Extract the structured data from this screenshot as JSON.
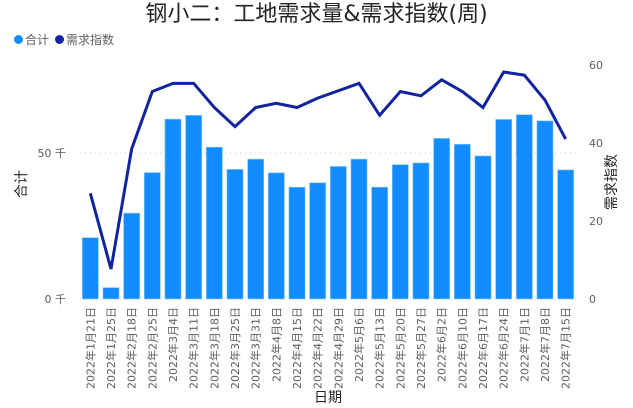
{
  "title": "钢小二：工地需求量&需求指数(周)",
  "legend": [
    {
      "label": "合计",
      "color": "#118DFF"
    },
    {
      "label": "需求指数",
      "color": "#12239E"
    }
  ],
  "axes": {
    "y_left_title": "合计",
    "y_right_title": "需求指数",
    "x_title": "日期",
    "y_left_ticks": [
      "0 千",
      "50 千"
    ],
    "y_right_ticks": [
      "0",
      "20",
      "40",
      "60"
    ]
  },
  "chart_data": {
    "type": "bar+line",
    "title": "钢小二：工地需求量&需求指数(周)",
    "xlabel": "日期",
    "ylabel": "合计",
    "y2label": "需求指数",
    "ylim": [
      0,
      100
    ],
    "y2lim": [
      0,
      60
    ],
    "grid": "dotted horizontal at 50千",
    "legend_position": "top-left",
    "categories": [
      "2022年1月21日",
      "2022年1月25日",
      "2022年2月18日",
      "2022年2月25日",
      "2022年3月4日",
      "2022年3月11日",
      "2022年3月18日",
      "2022年3月25日",
      "2022年3月31日",
      "2022年4月8日",
      "2022年4月15日",
      "2022年4月22日",
      "2022年4月29日",
      "2022年5月6日",
      "2022年5月13日",
      "2022年5月20日",
      "2022年5月27日",
      "2022年6月2日",
      "2022年6月10日",
      "2022年6月17日",
      "2022年6月24日",
      "2022年7月1日",
      "2022年7月8日",
      "2022年7月15日"
    ],
    "series": [
      {
        "name": "合计",
        "type": "bar",
        "axis": "left",
        "unit": "千",
        "color": "#118DFF",
        "values": [
          21.0,
          3.9,
          29.4,
          43.3,
          61.6,
          62.9,
          52.0,
          44.4,
          47.9,
          43.2,
          38.3,
          39.8,
          45.4,
          47.9,
          38.3,
          46.0,
          46.6,
          55.0,
          53.0,
          49.0,
          61.5,
          63.1,
          61.0,
          44.2
        ]
      },
      {
        "name": "需求指数",
        "type": "line",
        "axis": "right",
        "color": "#12239E",
        "values": [
          27.1,
          7.7,
          38.5,
          53.2,
          55.3,
          55.3,
          49.1,
          44.2,
          49.1,
          50.2,
          49.1,
          51.5,
          53.4,
          55.3,
          47.1,
          53.2,
          52.1,
          56.2,
          53.2,
          49.1,
          58.2,
          57.4,
          51.0,
          41.0
        ]
      }
    ]
  }
}
